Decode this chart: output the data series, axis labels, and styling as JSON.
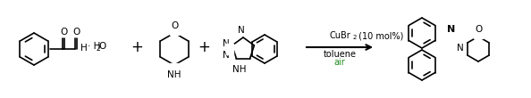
{
  "background_color": "#ffffff",
  "fig_width": 5.94,
  "fig_height": 1.1,
  "dpi": 100,
  "arrow_color": "#000000",
  "condition_line1": "CuBr",
  "condition_line1_sub": "2",
  "condition_line1_rest": " (10 mol%)",
  "condition_line2": "toluene",
  "condition_line3": "air",
  "condition_line3_color": "#228B22",
  "plus_color": "#000000",
  "line_color": "#000000",
  "font_size_conditions": 7,
  "font_size_structures": 7
}
